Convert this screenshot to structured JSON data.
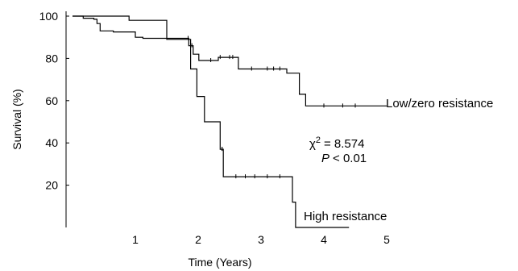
{
  "chart_data": {
    "type": "line",
    "subtype": "kaplan-meier",
    "xlabel": "Time (Years)",
    "ylabel": "Survival (%)",
    "xlim": [
      0,
      5
    ],
    "ylim": [
      0,
      100
    ],
    "xticks": [
      "1",
      "2",
      "3",
      "4",
      "5"
    ],
    "yticks": [
      "20",
      "40",
      "60",
      "80",
      "100"
    ],
    "grid": false,
    "series": [
      {
        "name": "Low/zero resistance",
        "points": [
          [
            0,
            100
          ],
          [
            0.17,
            100
          ],
          [
            0.17,
            99
          ],
          [
            0.34,
            99
          ],
          [
            0.34,
            98.5
          ],
          [
            0.39,
            98.5
          ],
          [
            0.39,
            96.5
          ],
          [
            0.44,
            96.5
          ],
          [
            0.44,
            93
          ],
          [
            0.65,
            93
          ],
          [
            0.65,
            92.5
          ],
          [
            1.0,
            92.5
          ],
          [
            1.0,
            90
          ],
          [
            1.12,
            90
          ],
          [
            1.12,
            89.5
          ],
          [
            1.85,
            89.5
          ],
          [
            1.85,
            86
          ],
          [
            1.92,
            86
          ],
          [
            1.92,
            82
          ],
          [
            2.01,
            82
          ],
          [
            2.01,
            79
          ],
          [
            2.32,
            79
          ],
          [
            2.32,
            80.5
          ],
          [
            2.64,
            80.5
          ],
          [
            2.64,
            75
          ],
          [
            3.41,
            75
          ],
          [
            3.41,
            73
          ],
          [
            3.61,
            73
          ],
          [
            3.61,
            63
          ],
          [
            3.71,
            63
          ],
          [
            3.71,
            57.5
          ],
          [
            5.0,
            57.5
          ]
        ],
        "censor_x": [
          1.84,
          1.9,
          2.2,
          2.35,
          2.5,
          2.55,
          2.85,
          3.1,
          3.2,
          3.3,
          4.0,
          4.3,
          4.5
        ]
      },
      {
        "name": "High resistance",
        "points": [
          [
            0,
            100
          ],
          [
            0.9,
            100
          ],
          [
            0.9,
            98
          ],
          [
            1.5,
            98
          ],
          [
            1.5,
            89
          ],
          [
            1.88,
            89
          ],
          [
            1.88,
            75
          ],
          [
            1.98,
            75
          ],
          [
            1.98,
            62
          ],
          [
            2.1,
            62
          ],
          [
            2.1,
            50
          ],
          [
            2.35,
            50
          ],
          [
            2.35,
            37
          ],
          [
            2.4,
            37
          ],
          [
            2.4,
            24
          ],
          [
            3.5,
            24
          ],
          [
            3.5,
            12
          ],
          [
            3.55,
            12
          ],
          [
            3.55,
            0
          ],
          [
            4.4,
            0
          ]
        ],
        "censor_x": [
          2.6,
          2.75,
          2.9,
          3.1,
          3.3,
          2.38,
          2.38
        ]
      }
    ],
    "annotations": {
      "chi_symbol": "χ",
      "chi_exponent": "2",
      "chi_value": "= 8.574",
      "p_symbol": "P",
      "p_value": "< 0.01"
    }
  }
}
